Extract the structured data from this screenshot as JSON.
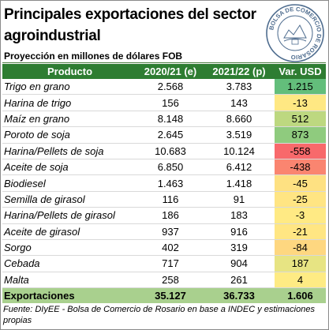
{
  "title_line1": "Principales exportaciones del sector",
  "title_line2": "agroindustrial",
  "subtitle": "Proyección en millones de dólares FOB",
  "logo_text": "BOLSA DE COMERCIO DE ROSARIO",
  "colors": {
    "header_bg": "#2e7d32",
    "total_bg": "#a9d08e",
    "positive_max": "#63be7b",
    "neutral": "#ffeb84",
    "negative_max": "#f8696b"
  },
  "chart_data": {
    "type": "table",
    "columns": [
      "Producto",
      "2020/21 (e)",
      "2021/22 (p)",
      "Var. USD"
    ],
    "rows": [
      {
        "producto": "Trigo en grano",
        "v2021": "2.568",
        "v2122": "3.783",
        "var": "1.215",
        "var_num": 1215
      },
      {
        "producto": "Harina de trigo",
        "v2021": "156",
        "v2122": "143",
        "var": "-13",
        "var_num": -13
      },
      {
        "producto": "Maíz en grano",
        "v2021": "8.148",
        "v2122": "8.660",
        "var": "512",
        "var_num": 512
      },
      {
        "producto": "Poroto de soja",
        "v2021": "2.645",
        "v2122": "3.519",
        "var": "873",
        "var_num": 873
      },
      {
        "producto": "Harina/Pellets de soja",
        "v2021": "10.683",
        "v2122": "10.124",
        "var": "-558",
        "var_num": -558
      },
      {
        "producto": "Aceite de soja",
        "v2021": "6.850",
        "v2122": "6.412",
        "var": "-438",
        "var_num": -438
      },
      {
        "producto": "Biodiesel",
        "v2021": "1.463",
        "v2122": "1.418",
        "var": "-45",
        "var_num": -45
      },
      {
        "producto": "Semilla de girasol",
        "v2021": "116",
        "v2122": "91",
        "var": "-25",
        "var_num": -25
      },
      {
        "producto": "Harina/Pellets de girasol",
        "v2021": "186",
        "v2122": "183",
        "var": "-3",
        "var_num": -3
      },
      {
        "producto": "Aceite de girasol",
        "v2021": "937",
        "v2122": "916",
        "var": "-21",
        "var_num": -21
      },
      {
        "producto": "Sorgo",
        "v2021": "402",
        "v2122": "319",
        "var": "-84",
        "var_num": -84
      },
      {
        "producto": "Cebada",
        "v2021": "717",
        "v2122": "904",
        "var": "187",
        "var_num": 187
      },
      {
        "producto": "Malta",
        "v2021": "258",
        "v2122": "261",
        "var": "4",
        "var_num": 4
      }
    ],
    "total": {
      "producto": "Exportaciones",
      "v2021": "35.127",
      "v2122": "36.733",
      "var": "1.606"
    }
  },
  "footnote": "Fuente: DIyEE - Bolsa de Comercio de Rosario en base a INDEC y estimaciones propias"
}
